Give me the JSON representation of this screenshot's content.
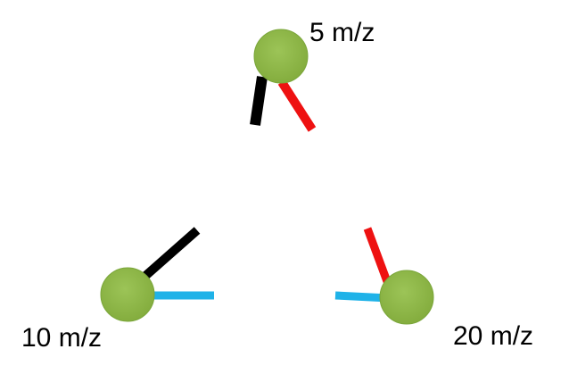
{
  "colors": {
    "node_fill": "#8db547",
    "node_edge": "#7aa63a",
    "bond_black": "#000000",
    "bond_red": "#ee1111",
    "bond_blue": "#1fb2e8"
  },
  "labels": {
    "top": "5 m/z",
    "left": "10 m/z",
    "right": "20 m/z"
  }
}
